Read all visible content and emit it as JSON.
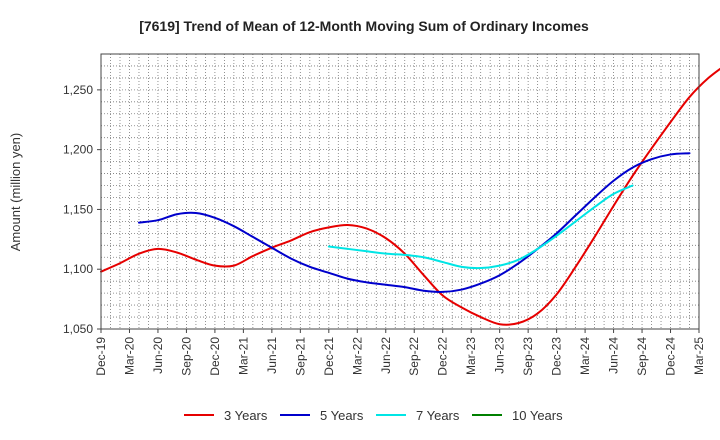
{
  "chart_data": {
    "type": "line",
    "title": "[7619]  Trend of Mean of 12-Month Moving Sum of Ordinary Incomes",
    "xlabel": "",
    "ylabel": "Amount (million yen)",
    "ylim": [
      1050,
      1280
    ],
    "y_ticks": [
      1050,
      1100,
      1150,
      1200,
      1250
    ],
    "y_tick_labels": [
      "1,050",
      "1,100",
      "1,150",
      "1,200",
      "1,250"
    ],
    "x_tick_labels": [
      "Dec-19",
      "Mar-20",
      "Jun-20",
      "Sep-20",
      "Dec-20",
      "Mar-21",
      "Jun-21",
      "Sep-21",
      "Dec-21",
      "Mar-22",
      "Jun-22",
      "Sep-22",
      "Dec-22",
      "Mar-23",
      "Jun-23",
      "Sep-23",
      "Dec-23",
      "Mar-24",
      "Jun-24",
      "Sep-24",
      "Dec-24",
      "Mar-25"
    ],
    "grid": true,
    "legend_position": "bottom",
    "series": [
      {
        "name": "3 Years",
        "color": "#e60000",
        "points": [
          [
            0,
            1098
          ],
          [
            1,
            1105
          ],
          [
            2,
            1113
          ],
          [
            3,
            1117
          ],
          [
            4,
            1114
          ],
          [
            5,
            1108
          ],
          [
            6,
            1103
          ],
          [
            7,
            1103
          ],
          [
            8,
            1111
          ],
          [
            9,
            1118
          ],
          [
            10,
            1124
          ],
          [
            11,
            1131
          ],
          [
            12,
            1135
          ],
          [
            13,
            1137
          ],
          [
            14,
            1134
          ],
          [
            15,
            1126
          ],
          [
            16,
            1113
          ],
          [
            17,
            1095
          ],
          [
            18,
            1078
          ],
          [
            19,
            1068
          ],
          [
            20,
            1060
          ],
          [
            21,
            1054
          ],
          [
            22,
            1055
          ],
          [
            23,
            1063
          ],
          [
            24,
            1079
          ],
          [
            25,
            1102
          ],
          [
            26,
            1127
          ],
          [
            27,
            1153
          ],
          [
            28,
            1178
          ],
          [
            29,
            1201
          ],
          [
            30,
            1223
          ],
          [
            31,
            1244
          ],
          [
            32,
            1260
          ],
          [
            33,
            1272
          ]
        ]
      },
      {
        "name": "5 Years",
        "color": "#0000cc",
        "points": [
          [
            2,
            1139
          ],
          [
            3,
            1141
          ],
          [
            4,
            1146
          ],
          [
            5,
            1147
          ],
          [
            6,
            1143
          ],
          [
            7,
            1136
          ],
          [
            8,
            1127
          ],
          [
            9,
            1118
          ],
          [
            10,
            1109
          ],
          [
            11,
            1102
          ],
          [
            12,
            1097
          ],
          [
            13,
            1092
          ],
          [
            14,
            1089
          ],
          [
            15,
            1087
          ],
          [
            16,
            1085
          ],
          [
            17,
            1082
          ],
          [
            18,
            1081
          ],
          [
            19,
            1083
          ],
          [
            20,
            1088
          ],
          [
            21,
            1095
          ],
          [
            22,
            1105
          ],
          [
            23,
            1117
          ],
          [
            24,
            1130
          ],
          [
            25,
            1145
          ],
          [
            26,
            1160
          ],
          [
            27,
            1174
          ],
          [
            28,
            1185
          ],
          [
            29,
            1192
          ],
          [
            30,
            1196
          ],
          [
            31,
            1197
          ]
        ]
      },
      {
        "name": "7 Years",
        "color": "#00e5e5",
        "points": [
          [
            12,
            1119
          ],
          [
            13,
            1117
          ],
          [
            14,
            1115
          ],
          [
            15,
            1113
          ],
          [
            16,
            1112
          ],
          [
            17,
            1110
          ],
          [
            18,
            1106
          ],
          [
            19,
            1102
          ],
          [
            20,
            1101
          ],
          [
            21,
            1103
          ],
          [
            22,
            1108
          ],
          [
            23,
            1117
          ],
          [
            24,
            1128
          ],
          [
            25,
            1140
          ],
          [
            26,
            1152
          ],
          [
            27,
            1163
          ],
          [
            28,
            1170
          ]
        ]
      },
      {
        "name": "10 Years",
        "color": "#008000",
        "points": []
      }
    ]
  }
}
